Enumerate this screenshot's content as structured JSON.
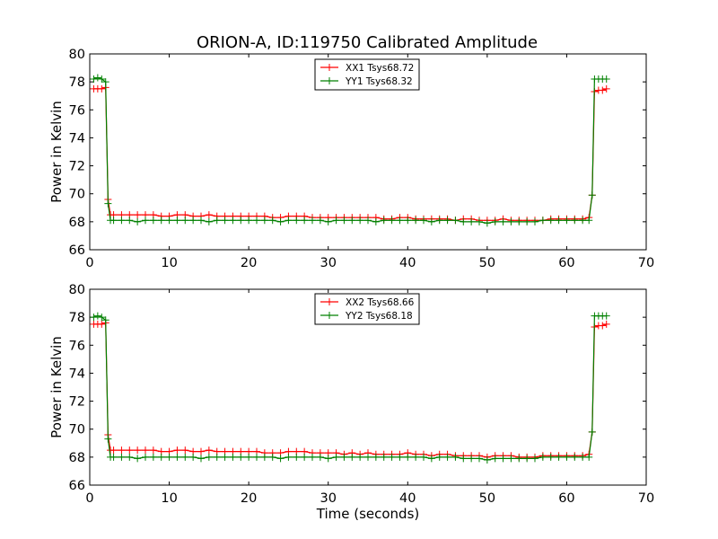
{
  "figure_title": "ORION-A, ID:119750 Calibrated Amplitude",
  "colors": {
    "red": "#ff0000",
    "green": "#008000"
  },
  "chart_data": [
    {
      "type": "line",
      "title": "ORION-A, ID:119750 Calibrated Amplitude",
      "xlabel": "",
      "ylabel": "Power in Kelvin",
      "xlim": [
        0,
        70
      ],
      "ylim": [
        66,
        80
      ],
      "xticks": [
        "0",
        "10",
        "20",
        "30",
        "40",
        "50",
        "60",
        "70"
      ],
      "yticks": [
        "66",
        "68",
        "70",
        "72",
        "74",
        "76",
        "78",
        "80"
      ],
      "grid": false,
      "legend_position": "top-center",
      "series": [
        {
          "name": "XX1 Tsys68.72",
          "color": "#ff0000",
          "marker": "+",
          "x": [
            0.5,
            1.0,
            1.5,
            2.0,
            2.3,
            2.6,
            3,
            4,
            5,
            6,
            7,
            8,
            9,
            10,
            11,
            12,
            13,
            14,
            15,
            16,
            17,
            18,
            19,
            20,
            21,
            22,
            23,
            24,
            25,
            26,
            27,
            28,
            29,
            30,
            31,
            32,
            33,
            34,
            35,
            36,
            37,
            38,
            39,
            40,
            41,
            42,
            43,
            44,
            45,
            46,
            47,
            48,
            49,
            50,
            51,
            52,
            53,
            54,
            55,
            56,
            57,
            58,
            59,
            60,
            61,
            62,
            62.8,
            63.2,
            63.5,
            64,
            64.5,
            65
          ],
          "y": [
            77.5,
            77.5,
            77.5,
            77.6,
            69.6,
            68.5,
            68.5,
            68.5,
            68.5,
            68.5,
            68.5,
            68.5,
            68.4,
            68.4,
            68.5,
            68.5,
            68.4,
            68.4,
            68.5,
            68.4,
            68.4,
            68.4,
            68.4,
            68.4,
            68.4,
            68.4,
            68.3,
            68.3,
            68.4,
            68.4,
            68.4,
            68.3,
            68.3,
            68.3,
            68.3,
            68.3,
            68.3,
            68.3,
            68.3,
            68.3,
            68.2,
            68.2,
            68.3,
            68.3,
            68.2,
            68.2,
            68.2,
            68.2,
            68.2,
            68.1,
            68.2,
            68.2,
            68.1,
            68.1,
            68.1,
            68.2,
            68.1,
            68.1,
            68.1,
            68.1,
            68.1,
            68.2,
            68.2,
            68.2,
            68.2,
            68.2,
            68.3,
            69.9,
            77.3,
            77.4,
            77.4,
            77.5
          ]
        },
        {
          "name": "YY1 Tsys68.32",
          "color": "#008000",
          "marker": "+",
          "x": [
            0.5,
            1.0,
            1.5,
            2.0,
            2.3,
            2.6,
            3,
            4,
            5,
            6,
            7,
            8,
            9,
            10,
            11,
            12,
            13,
            14,
            15,
            16,
            17,
            18,
            19,
            20,
            21,
            22,
            23,
            24,
            25,
            26,
            27,
            28,
            29,
            30,
            31,
            32,
            33,
            34,
            35,
            36,
            37,
            38,
            39,
            40,
            41,
            42,
            43,
            44,
            45,
            46,
            47,
            48,
            49,
            50,
            51,
            52,
            53,
            54,
            55,
            56,
            57,
            58,
            59,
            60,
            61,
            62,
            62.8,
            63.2,
            63.5,
            64,
            64.5,
            65
          ],
          "y": [
            78.2,
            78.3,
            78.2,
            78.0,
            69.3,
            68.1,
            68.1,
            68.1,
            68.1,
            68.0,
            68.1,
            68.1,
            68.1,
            68.1,
            68.1,
            68.1,
            68.1,
            68.1,
            68.0,
            68.1,
            68.1,
            68.1,
            68.1,
            68.1,
            68.1,
            68.1,
            68.1,
            68.0,
            68.1,
            68.1,
            68.1,
            68.1,
            68.1,
            68.0,
            68.1,
            68.1,
            68.1,
            68.1,
            68.1,
            68.0,
            68.1,
            68.1,
            68.1,
            68.1,
            68.1,
            68.1,
            68.0,
            68.1,
            68.1,
            68.1,
            68.0,
            68.0,
            68.0,
            67.9,
            68.0,
            68.0,
            68.0,
            68.0,
            68.0,
            68.0,
            68.1,
            68.1,
            68.1,
            68.1,
            68.1,
            68.1,
            68.1,
            69.9,
            78.2,
            78.2,
            78.2,
            78.2
          ]
        }
      ]
    },
    {
      "type": "line",
      "title": "",
      "xlabel": "Time (seconds)",
      "ylabel": "Power in Kelvin",
      "xlim": [
        0,
        70
      ],
      "ylim": [
        66,
        80
      ],
      "xticks": [
        "0",
        "10",
        "20",
        "30",
        "40",
        "50",
        "60",
        "70"
      ],
      "yticks": [
        "66",
        "68",
        "70",
        "72",
        "74",
        "76",
        "78",
        "80"
      ],
      "grid": false,
      "legend_position": "top-center",
      "series": [
        {
          "name": "XX2 Tsys68.66",
          "color": "#ff0000",
          "marker": "+",
          "x": [
            0.5,
            1.0,
            1.5,
            2.0,
            2.3,
            2.6,
            3,
            4,
            5,
            6,
            7,
            8,
            9,
            10,
            11,
            12,
            13,
            14,
            15,
            16,
            17,
            18,
            19,
            20,
            21,
            22,
            23,
            24,
            25,
            26,
            27,
            28,
            29,
            30,
            31,
            32,
            33,
            34,
            35,
            36,
            37,
            38,
            39,
            40,
            41,
            42,
            43,
            44,
            45,
            46,
            47,
            48,
            49,
            50,
            51,
            52,
            53,
            54,
            55,
            56,
            57,
            58,
            59,
            60,
            61,
            62,
            62.8,
            63.2,
            63.5,
            64,
            64.5,
            65
          ],
          "y": [
            77.5,
            77.5,
            77.5,
            77.6,
            69.6,
            68.5,
            68.5,
            68.5,
            68.5,
            68.5,
            68.5,
            68.5,
            68.4,
            68.4,
            68.5,
            68.5,
            68.4,
            68.4,
            68.5,
            68.4,
            68.4,
            68.4,
            68.4,
            68.4,
            68.4,
            68.3,
            68.3,
            68.3,
            68.4,
            68.4,
            68.4,
            68.3,
            68.3,
            68.3,
            68.3,
            68.2,
            68.3,
            68.2,
            68.3,
            68.2,
            68.2,
            68.2,
            68.2,
            68.3,
            68.2,
            68.2,
            68.1,
            68.2,
            68.2,
            68.1,
            68.1,
            68.1,
            68.1,
            68.0,
            68.1,
            68.1,
            68.1,
            68.0,
            68.0,
            68.0,
            68.1,
            68.1,
            68.1,
            68.1,
            68.1,
            68.1,
            68.2,
            69.8,
            77.3,
            77.4,
            77.4,
            77.5
          ]
        },
        {
          "name": "YY2 Tsys68.18",
          "color": "#008000",
          "marker": "+",
          "x": [
            0.5,
            1.0,
            1.5,
            2.0,
            2.3,
            2.6,
            3,
            4,
            5,
            6,
            7,
            8,
            9,
            10,
            11,
            12,
            13,
            14,
            15,
            16,
            17,
            18,
            19,
            20,
            21,
            22,
            23,
            24,
            25,
            26,
            27,
            28,
            29,
            30,
            31,
            32,
            33,
            34,
            35,
            36,
            37,
            38,
            39,
            40,
            41,
            42,
            43,
            44,
            45,
            46,
            47,
            48,
            49,
            50,
            51,
            52,
            53,
            54,
            55,
            56,
            57,
            58,
            59,
            60,
            61,
            62,
            62.8,
            63.2,
            63.5,
            64,
            64.5,
            65
          ],
          "y": [
            78.0,
            78.1,
            78.0,
            77.8,
            69.3,
            68.0,
            68.0,
            68.0,
            68.0,
            67.9,
            68.0,
            68.0,
            68.0,
            68.0,
            68.0,
            68.0,
            68.0,
            67.9,
            68.0,
            68.0,
            68.0,
            68.0,
            68.0,
            68.0,
            68.0,
            68.0,
            68.0,
            67.9,
            68.0,
            68.0,
            68.0,
            68.0,
            68.0,
            67.9,
            68.0,
            68.0,
            68.0,
            68.0,
            68.0,
            68.0,
            68.0,
            68.0,
            68.0,
            68.0,
            68.0,
            68.0,
            67.9,
            68.0,
            68.0,
            68.0,
            67.9,
            67.9,
            67.9,
            67.8,
            67.9,
            67.9,
            67.9,
            67.9,
            67.9,
            67.9,
            68.0,
            68.0,
            68.0,
            68.0,
            68.0,
            68.0,
            68.0,
            69.8,
            78.1,
            78.1,
            78.1,
            78.1
          ]
        }
      ]
    }
  ]
}
